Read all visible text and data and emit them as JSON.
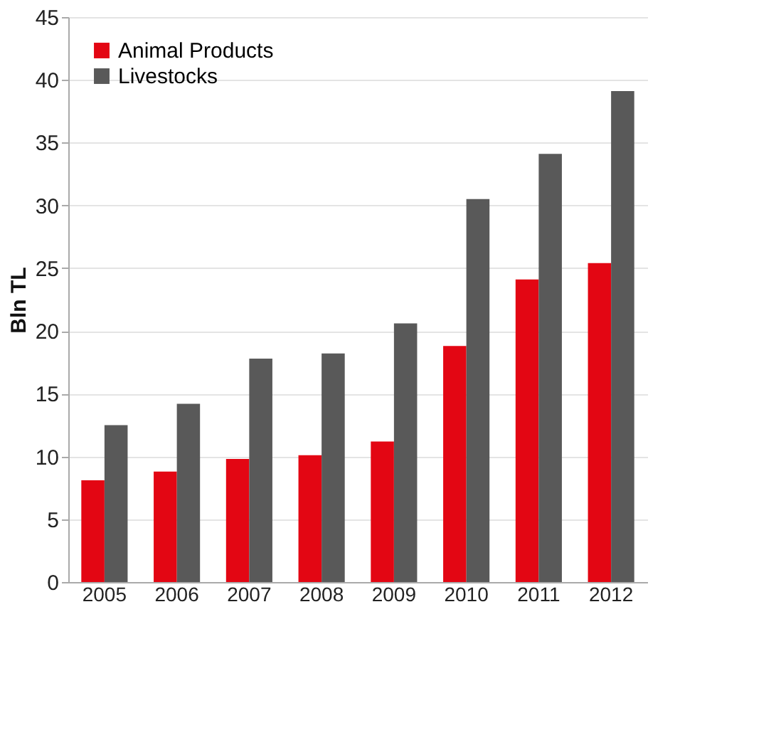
{
  "chart_data": {
    "type": "bar",
    "ylabel": "Bln TL",
    "categories": [
      "2005",
      "2006",
      "2007",
      "2008",
      "2009",
      "2010",
      "2011",
      "2012"
    ],
    "series": [
      {
        "name": "Animal Products",
        "color": "#e30613",
        "values": [
          8.1,
          8.8,
          9.8,
          10.1,
          11.2,
          18.8,
          24.1,
          25.4
        ]
      },
      {
        "name": "Livestocks",
        "color": "#595959",
        "values": [
          12.5,
          14.2,
          17.8,
          18.2,
          20.6,
          30.5,
          34.1,
          39.1
        ]
      }
    ],
    "ylim": [
      0,
      45
    ],
    "yticks": [
      0,
      5,
      10,
      15,
      20,
      25,
      30,
      35,
      40,
      45
    ],
    "grid": "y",
    "legend": "top left"
  }
}
